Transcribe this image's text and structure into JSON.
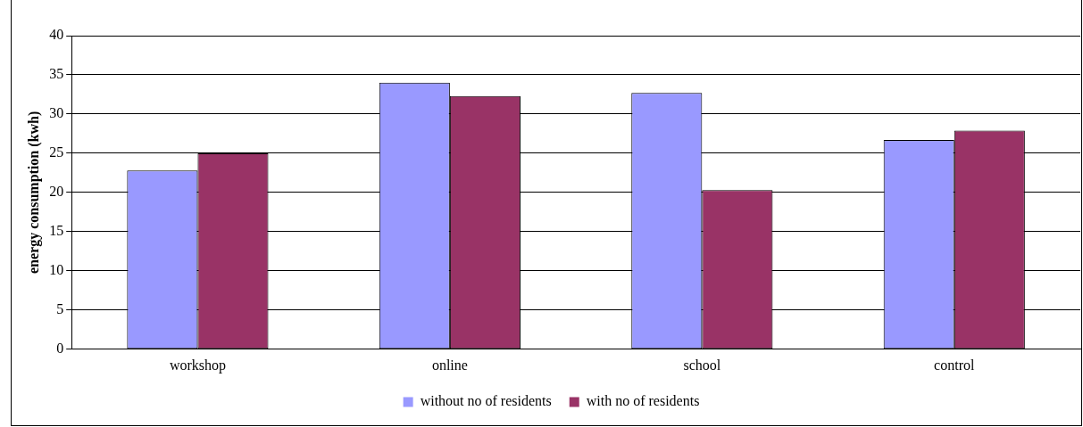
{
  "chart_data": {
    "type": "bar",
    "ylabel": "energy consumption (kwh)",
    "categories": [
      "workshop",
      "online",
      "school",
      "control"
    ],
    "series": [
      {
        "name": "without no of residents",
        "color": "#9999ff",
        "values": [
          22.8,
          34.0,
          32.7,
          26.7
        ]
      },
      {
        "name": "with no of residents",
        "color": "#993366",
        "values": [
          25.0,
          32.3,
          20.3,
          27.9
        ]
      }
    ],
    "ylim": [
      0,
      40
    ],
    "yticks": [
      0,
      5,
      10,
      15,
      20,
      25,
      30,
      35,
      40
    ],
    "grid": "y",
    "legend": "bottom"
  }
}
